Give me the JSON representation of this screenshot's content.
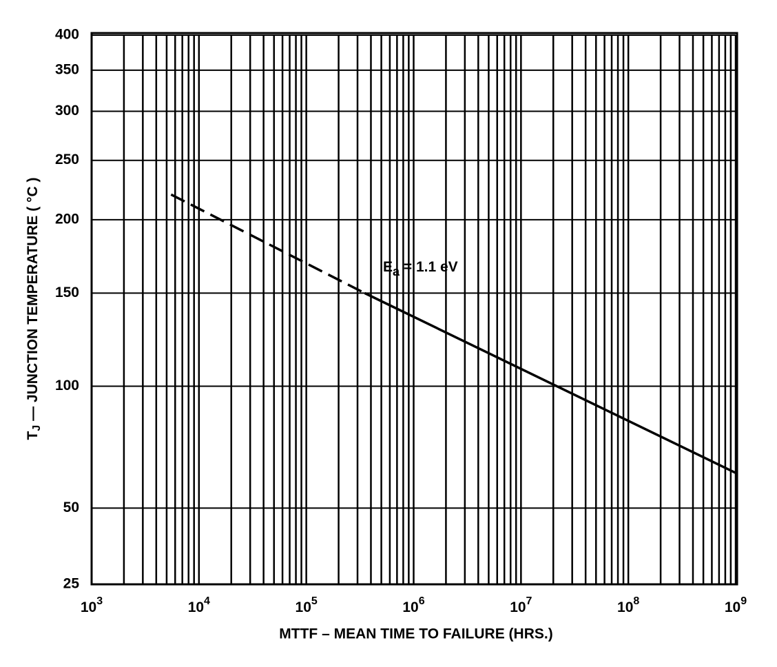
{
  "chart_data": {
    "type": "line",
    "x_label": "MTTF – MEAN TIME TO FAILURE (HRS.)",
    "y_label": [
      "T",
      "J",
      " — JUNCTION TEMPERATURE  ( °C )"
    ],
    "annotation": [
      "E",
      "a",
      " = 1.1 eV"
    ],
    "xscale": "log",
    "yscale": "inverse-kelvin",
    "xlim": [
      1000,
      1000000000
    ],
    "xticks": [
      {
        "value": 1000,
        "label": [
          "10",
          "3"
        ]
      },
      {
        "value": 10000,
        "label": [
          "10",
          "4"
        ]
      },
      {
        "value": 100000,
        "label": [
          "10",
          "5"
        ]
      },
      {
        "value": 1000000,
        "label": [
          "10",
          "6"
        ]
      },
      {
        "value": 10000000,
        "label": [
          "10",
          "7"
        ]
      },
      {
        "value": 100000000,
        "label": [
          "10",
          "8"
        ]
      },
      {
        "value": 1000000000,
        "label": [
          "10",
          "9"
        ]
      }
    ],
    "xminorticks": [
      2000,
      3000,
      4000,
      5000,
      6000,
      7000,
      8000,
      9000,
      20000,
      30000,
      40000,
      50000,
      60000,
      70000,
      80000,
      90000,
      200000,
      300000,
      400000,
      500000,
      600000,
      700000,
      800000,
      900000,
      2000000,
      3000000,
      4000000,
      5000000,
      6000000,
      7000000,
      8000000,
      9000000,
      20000000,
      30000000,
      40000000,
      50000000,
      60000000,
      70000000,
      80000000,
      90000000,
      200000000,
      300000000,
      400000000,
      500000000,
      600000000,
      700000000,
      800000000,
      900000000
    ],
    "ylim": [
      25,
      400
    ],
    "yticks": [
      25,
      50,
      100,
      150,
      200,
      250,
      300,
      350,
      400
    ],
    "grid": true,
    "series": [
      {
        "color": "#000000",
        "style": "dashed",
        "x": [
          5500,
          350000
        ],
        "values": [
          220,
          150
        ]
      },
      {
        "color": "#000000",
        "style": "solid",
        "x": [
          350000,
          1000000000
        ],
        "values": [
          150,
          63
        ]
      }
    ]
  }
}
